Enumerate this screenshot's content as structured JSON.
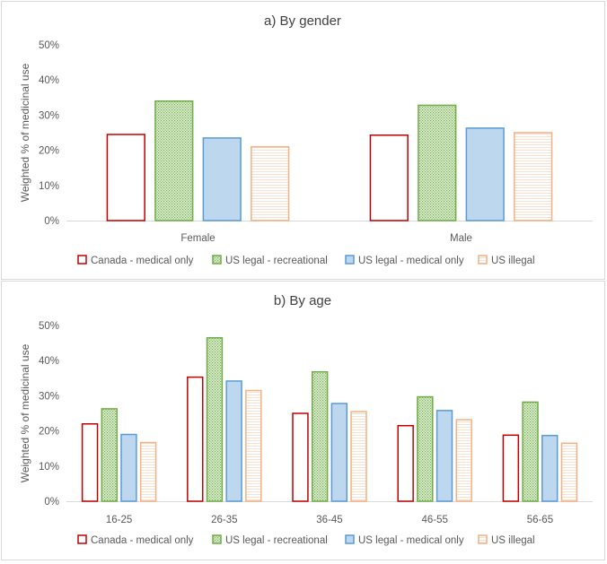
{
  "colors": {
    "canada_medical_only": "#c00000",
    "us_legal_recreational": "#70ad47",
    "us_legal_medical_only": "#5b9bd5",
    "us_illegal": "#f4b183",
    "axis_text": "#595959",
    "gridline": "#d9d9d9"
  },
  "legend": [
    {
      "key": "canada_medical_only",
      "label": "Canada - medical only"
    },
    {
      "key": "us_legal_recreational",
      "label": "US legal - recreational"
    },
    {
      "key": "us_legal_medical_only",
      "label": "US legal - medical only"
    },
    {
      "key": "us_illegal",
      "label": "US illegal"
    }
  ],
  "chart_data": [
    {
      "type": "bar",
      "title": "a) By gender",
      "xlabel": "",
      "ylabel": "Weighted % of medicinal use",
      "ylim": [
        0,
        50
      ],
      "yticks": [
        "0%",
        "10%",
        "20%",
        "30%",
        "40%",
        "50%"
      ],
      "categories": [
        "Female",
        "Male"
      ],
      "series": [
        {
          "name": "Canada - medical only",
          "key": "canada_medical_only",
          "values": [
            24.5,
            24.3
          ]
        },
        {
          "name": "US legal - recreational",
          "key": "us_legal_recreational",
          "values": [
            34.0,
            32.8
          ]
        },
        {
          "name": "US legal - medical only",
          "key": "us_legal_medical_only",
          "values": [
            23.5,
            26.3
          ]
        },
        {
          "name": "US illegal",
          "key": "us_illegal",
          "values": [
            21.0,
            25.0
          ]
        }
      ],
      "legend_position": "bottom",
      "grid": false
    },
    {
      "type": "bar",
      "title": "b) By age",
      "xlabel": "",
      "ylabel": "Weighted % of medicinal use",
      "ylim": [
        0,
        50
      ],
      "yticks": [
        "0%",
        "10%",
        "20%",
        "30%",
        "40%",
        "50%"
      ],
      "categories": [
        "16-25",
        "26-35",
        "36-45",
        "46-55",
        "56-65"
      ],
      "series": [
        {
          "name": "Canada - medical only",
          "key": "canada_medical_only",
          "values": [
            22.0,
            35.3,
            25.0,
            21.5,
            18.8
          ]
        },
        {
          "name": "US legal - recreational",
          "key": "us_legal_recreational",
          "values": [
            26.3,
            46.5,
            36.8,
            29.7,
            28.2
          ]
        },
        {
          "name": "US legal - medical only",
          "key": "us_legal_medical_only",
          "values": [
            19.0,
            34.2,
            27.8,
            25.8,
            18.7
          ]
        },
        {
          "name": "US illegal",
          "key": "us_illegal",
          "values": [
            16.7,
            31.5,
            25.5,
            23.2,
            16.5
          ]
        }
      ],
      "legend_position": "bottom",
      "grid": false
    }
  ]
}
